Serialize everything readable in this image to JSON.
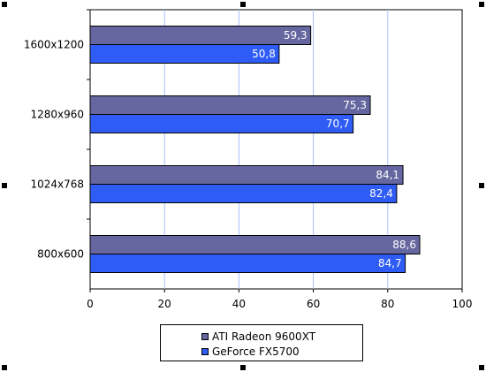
{
  "chart_data": {
    "type": "bar",
    "orientation": "horizontal",
    "categories": [
      "1600x1200",
      "1280x960",
      "1024x768",
      "800x600"
    ],
    "series": [
      {
        "name": "ATI Radeon 9600XT",
        "values": [
          59.3,
          75.3,
          84.1,
          88.6
        ],
        "labels": [
          "59,3",
          "75,3",
          "84,1",
          "88,6"
        ],
        "color": "#6666a0"
      },
      {
        "name": "GeForce FX5700",
        "values": [
          50.8,
          70.7,
          82.4,
          84.7
        ],
        "labels": [
          "50,8",
          "70,7",
          "82,4",
          "84,7"
        ],
        "color": "#2e5cf5"
      }
    ],
    "xlim": [
      0,
      100
    ],
    "xticks": [
      "0",
      "20",
      "40",
      "60",
      "80",
      "100"
    ],
    "title": "",
    "xlabel": "",
    "ylabel": "",
    "grid": "vertical",
    "grid_color": "#a8c0ff",
    "legend_position": "bottom-center"
  }
}
